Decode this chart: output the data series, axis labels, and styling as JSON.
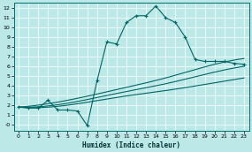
{
  "xlabel": "Humidex (Indice chaleur)",
  "background_color": "#bde8e8",
  "line_color": "#006666",
  "grid_color": "#ffffff",
  "xlim": [
    -0.5,
    23.5
  ],
  "ylim": [
    -0.6,
    12.5
  ],
  "xticks": [
    0,
    1,
    2,
    3,
    4,
    5,
    6,
    7,
    8,
    9,
    10,
    11,
    12,
    13,
    14,
    15,
    16,
    17,
    18,
    19,
    20,
    21,
    22,
    23
  ],
  "yticks": [
    0,
    1,
    2,
    3,
    4,
    5,
    6,
    7,
    8,
    9,
    10,
    11,
    12
  ],
  "ytick_labels": [
    "-0",
    "1",
    "2",
    "3",
    "4",
    "5",
    "6",
    "7",
    "8",
    "9",
    "10",
    "11",
    "12"
  ],
  "main_x": [
    0,
    1,
    2,
    3,
    4,
    5,
    6,
    7,
    8,
    9,
    10,
    11,
    12,
    13,
    14,
    15,
    16,
    17,
    18,
    19,
    20,
    21,
    22,
    23
  ],
  "main_y": [
    1.8,
    1.7,
    1.7,
    2.5,
    1.5,
    1.5,
    1.4,
    -0.1,
    4.5,
    8.5,
    8.3,
    10.5,
    11.2,
    11.2,
    12.2,
    11.0,
    10.5,
    9.0,
    6.7,
    6.5,
    6.5,
    6.5,
    6.3,
    6.2
  ],
  "curve1_pts_x": [
    0,
    5,
    10,
    15,
    20,
    23
  ],
  "curve1_pts_y": [
    1.8,
    2.0,
    2.8,
    3.5,
    4.3,
    4.8
  ],
  "curve2_pts_x": [
    0,
    5,
    10,
    15,
    20,
    23
  ],
  "curve2_pts_y": [
    1.8,
    2.2,
    3.2,
    4.2,
    5.4,
    6.0
  ],
  "curve3_pts_x": [
    0,
    5,
    10,
    15,
    20,
    23
  ],
  "curve3_pts_y": [
    1.8,
    2.5,
    3.6,
    4.8,
    6.2,
    6.8
  ]
}
